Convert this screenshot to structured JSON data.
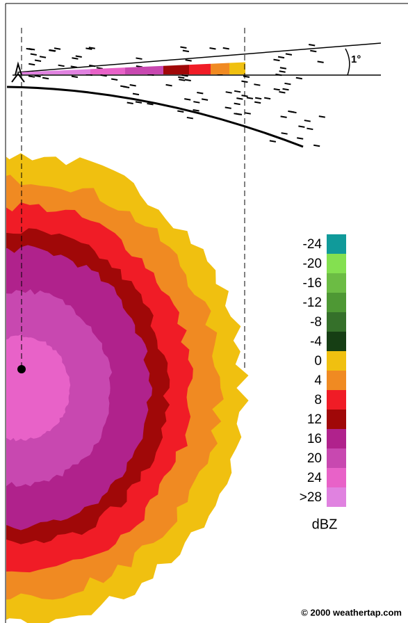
{
  "beam_angle_label": "1°",
  "legend": {
    "entries": [
      {
        "label": "-24",
        "color": "#109a9a"
      },
      {
        "label": "-20",
        "color": "#84e050"
      },
      {
        "label": "-16",
        "color": "#6cbc44"
      },
      {
        "label": "-12",
        "color": "#4e9834"
      },
      {
        "label": "-8",
        "color": "#35702a"
      },
      {
        "label": "-4",
        "color": "#163e14"
      },
      {
        "label": "0",
        "color": "#f0c010"
      },
      {
        "label": "4",
        "color": "#f08a22"
      },
      {
        "label": "8",
        "color": "#f01c26"
      },
      {
        "label": "12",
        "color": "#a00808"
      },
      {
        "label": "16",
        "color": "#b0228c"
      },
      {
        "label": "20",
        "color": "#c848b0"
      },
      {
        "label": "24",
        "color": "#e862c8"
      },
      {
        "label": ">28",
        "color": "#e082e0"
      }
    ],
    "unit": "dBZ"
  },
  "copyright": "© 2000 weathertap.com"
}
